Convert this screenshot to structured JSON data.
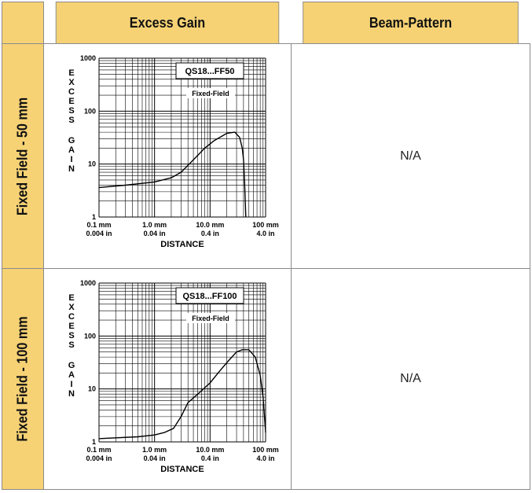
{
  "header": {
    "col1": "Excess Gain",
    "col2": "Beam-Pattern"
  },
  "rows": [
    {
      "label": "Fixed Field - 50 mm",
      "beam_pattern": "N/A"
    },
    {
      "label": "Fixed Field - 100 mm",
      "beam_pattern": "N/A"
    }
  ],
  "chart_data": [
    {
      "type": "line",
      "model": "QS18...FF50",
      "mode": "Fixed-Field",
      "ylabel": "EXCESS GAIN",
      "xlabel": "DISTANCE",
      "x_scale": "log",
      "y_scale": "log",
      "xlim": [
        0.1,
        100
      ],
      "ylim": [
        1,
        1000
      ],
      "y_ticks": [
        "1",
        "10",
        "100",
        "1000"
      ],
      "x_ticks_mm": [
        "0.1 mm",
        "1.0 mm",
        "10.0 mm",
        "100 mm"
      ],
      "x_ticks_in": [
        "0.004 in",
        "0.04 in",
        "0.4 in",
        "4.0 in"
      ],
      "series": [
        {
          "x": [
            0.1,
            0.3,
            1,
            2,
            3,
            5,
            8,
            12,
            20,
            28,
            34,
            38,
            40,
            42,
            44
          ],
          "y": [
            3.6,
            4,
            4.6,
            5.5,
            7,
            12,
            20,
            28,
            38,
            40,
            32,
            20,
            12,
            4,
            1
          ]
        }
      ]
    },
    {
      "type": "line",
      "model": "QS18...FF100",
      "mode": "Fixed-Field",
      "ylabel": "EXCESS GAIN",
      "xlabel": "DISTANCE",
      "x_scale": "log",
      "y_scale": "log",
      "xlim": [
        0.1,
        100
      ],
      "ylim": [
        1,
        1000
      ],
      "y_ticks": [
        "1",
        "10",
        "100",
        "1000"
      ],
      "x_ticks_mm": [
        "0.1 mm",
        "1.0 mm",
        "10.0 mm",
        "100 mm"
      ],
      "x_ticks_in": [
        "0.004 in",
        "0.04 in",
        "0.4 in",
        "4.0 in"
      ],
      "series": [
        {
          "x": [
            0.1,
            0.5,
            1,
            1.5,
            2.2,
            3,
            4,
            6,
            10,
            15,
            22,
            30,
            38,
            50,
            65,
            80,
            90,
            100
          ],
          "y": [
            1.15,
            1.25,
            1.35,
            1.5,
            1.8,
            3,
            5.5,
            8,
            13,
            22,
            35,
            50,
            55,
            55,
            40,
            18,
            7,
            1.5
          ]
        }
      ]
    }
  ]
}
